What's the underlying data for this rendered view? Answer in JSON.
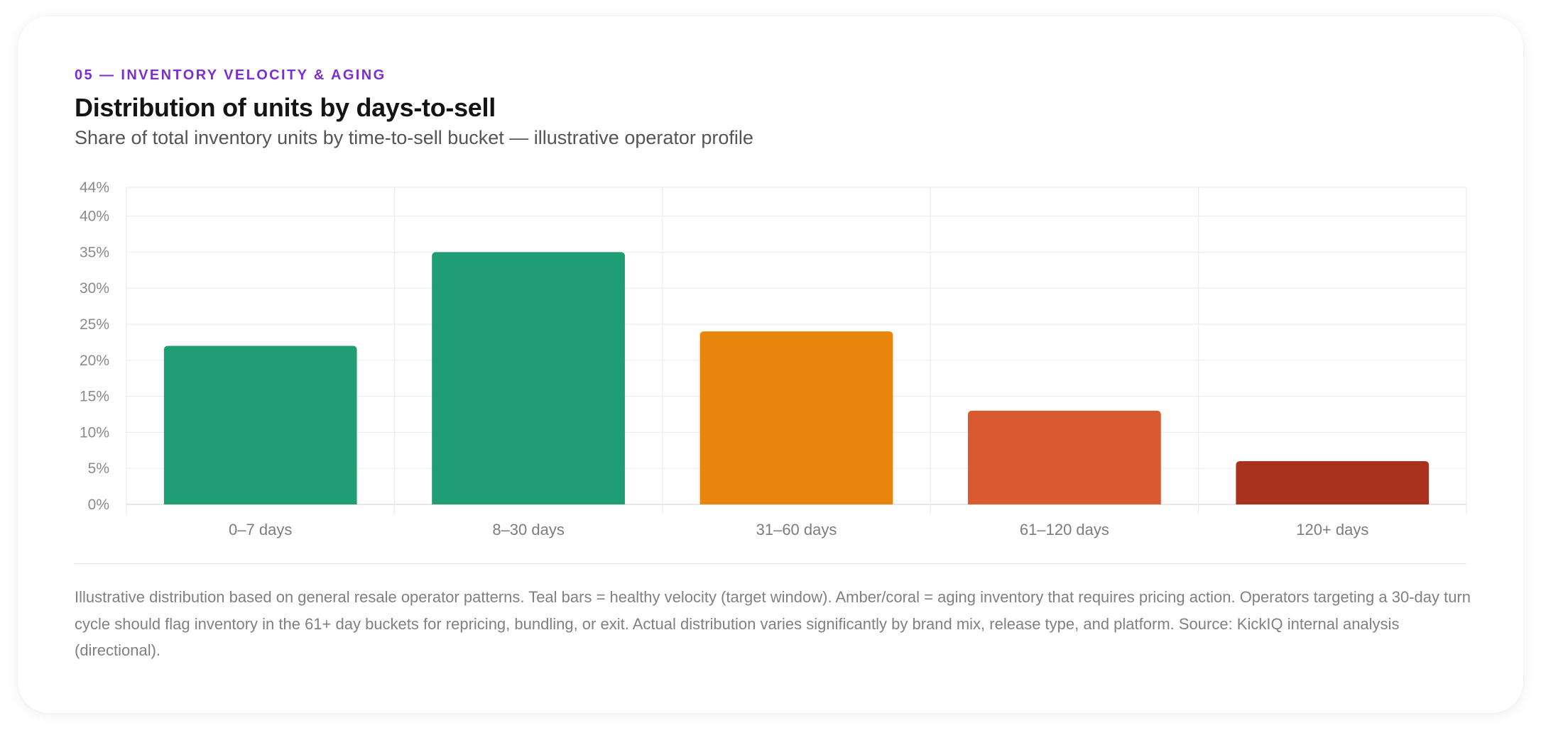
{
  "header": {
    "eyebrow": "05 — INVENTORY VELOCITY & AGING",
    "title": "Distribution of units by days-to-sell",
    "subtitle": "Share of total inventory units by time-to-sell bucket — illustrative operator profile"
  },
  "chart_data": {
    "type": "bar",
    "categories": [
      "0–7 days",
      "8–30 days",
      "31–60 days",
      "61–120 days",
      "120+ days"
    ],
    "values": [
      22,
      35,
      24,
      13,
      6
    ],
    "colors": [
      "#1f9e75",
      "#1f9e75",
      "#e8850c",
      "#d95a30",
      "#a8321e"
    ],
    "ylim": [
      0,
      44
    ],
    "yticks": [
      0,
      5,
      10,
      15,
      20,
      25,
      30,
      35,
      40,
      44
    ],
    "ytick_labels": [
      "0%",
      "5%",
      "10%",
      "15%",
      "20%",
      "25%",
      "30%",
      "35%",
      "40%",
      "44%"
    ],
    "grid": true,
    "title": "",
    "xlabel": "",
    "ylabel": ""
  },
  "footnote": "Illustrative distribution based on general resale operator patterns. Teal bars = healthy velocity (target window). Amber/coral = aging inventory that requires pricing action. Operators targeting a 30-day turn cycle should flag inventory in the 61+ day buckets for repricing, bundling, or exit. Actual distribution varies significantly by brand mix, release type, and platform. Source: KickIQ internal analysis (directional)."
}
